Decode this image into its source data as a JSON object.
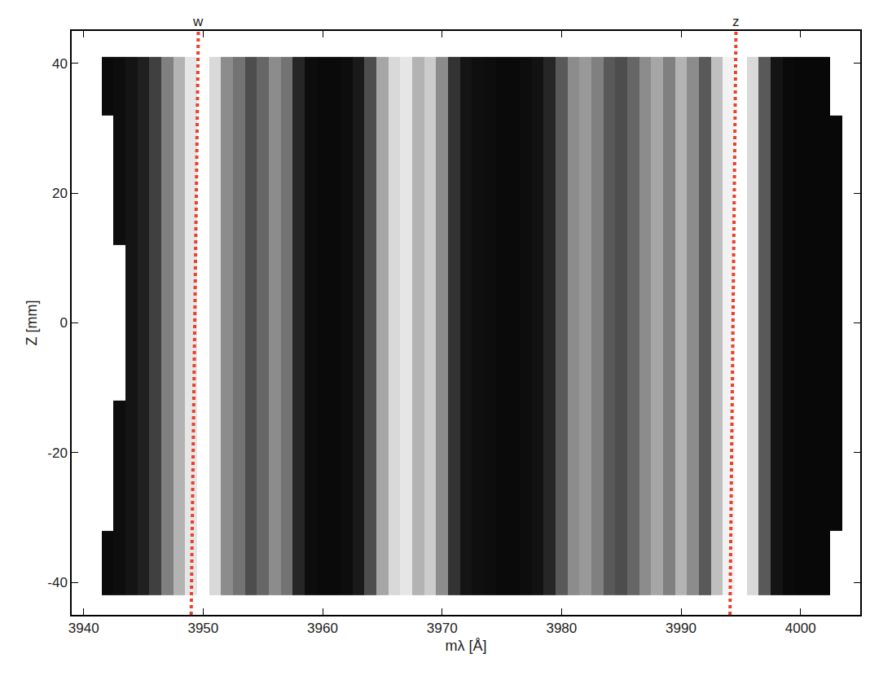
{
  "chart_data": {
    "type": "heatmap",
    "x_label": "mλ [Å]",
    "y_label": "Z [mm]",
    "x": [
      3941,
      3942,
      3943,
      3944,
      3945,
      3946,
      3947,
      3948,
      3949,
      3950,
      3951,
      3952,
      3953,
      3954,
      3955,
      3956,
      3957,
      3958,
      3959,
      3960,
      3961,
      3962,
      3963,
      3964,
      3965,
      3966,
      3967,
      3968,
      3969,
      3970,
      3971,
      3972,
      3973,
      3974,
      3975,
      3976,
      3977,
      3978,
      3979,
      3980,
      3981,
      3982,
      3983,
      3984,
      3985,
      3986,
      3987,
      3988,
      3989,
      3990,
      3991,
      3992,
      3993,
      3994,
      3995,
      3996,
      3997,
      3998,
      3999,
      4000,
      4001,
      4002,
      4003,
      4004
    ],
    "y_edges": [
      -42,
      -32,
      -22,
      -12,
      -4,
      4,
      12,
      22,
      32,
      41
    ],
    "cells": [
      [
        null,
        0.04,
        0.05,
        0.08,
        0.12,
        0.25,
        0.5,
        0.7,
        0.9,
        1.0,
        0.85,
        0.55,
        0.45,
        0.3,
        0.4,
        0.55,
        0.45,
        0.15,
        0.05,
        0.04,
        0.04,
        0.05,
        0.1,
        0.3,
        0.65,
        0.85,
        0.9,
        0.7,
        0.8,
        0.55,
        0.2,
        0.08,
        0.06,
        0.05,
        0.04,
        0.04,
        0.05,
        0.07,
        0.15,
        0.35,
        0.55,
        0.6,
        0.5,
        0.35,
        0.3,
        0.4,
        0.55,
        0.65,
        0.5,
        0.7,
        0.55,
        0.35,
        0.75,
        0.95,
        1.0,
        0.85,
        0.35,
        0.08,
        0.04,
        0.03,
        0.03,
        0.03,
        null,
        null
      ],
      [
        null,
        null,
        0.05,
        0.08,
        0.12,
        0.25,
        0.5,
        0.7,
        0.9,
        1.0,
        0.85,
        0.55,
        0.45,
        0.3,
        0.4,
        0.55,
        0.45,
        0.15,
        0.05,
        0.04,
        0.04,
        0.05,
        0.1,
        0.3,
        0.65,
        0.85,
        0.9,
        0.7,
        0.8,
        0.55,
        0.2,
        0.08,
        0.06,
        0.05,
        0.04,
        0.04,
        0.05,
        0.07,
        0.15,
        0.35,
        0.55,
        0.6,
        0.5,
        0.35,
        0.3,
        0.4,
        0.55,
        0.65,
        0.5,
        0.7,
        0.55,
        0.35,
        0.75,
        0.95,
        1.0,
        0.85,
        0.35,
        0.08,
        0.04,
        0.03,
        0.03,
        0.03,
        0.03,
        null
      ],
      [
        null,
        null,
        0.05,
        0.08,
        0.12,
        0.25,
        0.5,
        0.7,
        0.9,
        1.0,
        0.85,
        0.55,
        0.45,
        0.3,
        0.4,
        0.55,
        0.45,
        0.15,
        0.05,
        0.04,
        0.04,
        0.05,
        0.1,
        0.3,
        0.65,
        0.85,
        0.9,
        0.7,
        0.8,
        0.55,
        0.2,
        0.08,
        0.06,
        0.05,
        0.04,
        0.04,
        0.05,
        0.07,
        0.15,
        0.35,
        0.55,
        0.6,
        0.5,
        0.35,
        0.3,
        0.4,
        0.55,
        0.65,
        0.5,
        0.7,
        0.55,
        0.35,
        0.75,
        0.95,
        1.0,
        0.85,
        0.35,
        0.08,
        0.04,
        0.03,
        0.03,
        0.03,
        0.03,
        null
      ],
      [
        null,
        null,
        null,
        0.08,
        0.12,
        0.25,
        0.5,
        0.7,
        0.9,
        1.0,
        0.85,
        0.55,
        0.45,
        0.3,
        0.4,
        0.55,
        0.45,
        0.15,
        0.05,
        0.04,
        0.04,
        0.05,
        0.1,
        0.3,
        0.65,
        0.85,
        0.9,
        0.7,
        0.8,
        0.55,
        0.2,
        0.08,
        0.06,
        0.05,
        0.04,
        0.04,
        0.05,
        0.07,
        0.15,
        0.35,
        0.55,
        0.6,
        0.5,
        0.35,
        0.3,
        0.4,
        0.55,
        0.65,
        0.5,
        0.7,
        0.55,
        0.35,
        0.75,
        0.95,
        1.0,
        0.85,
        0.35,
        0.08,
        0.04,
        0.03,
        0.03,
        0.03,
        0.03,
        null
      ],
      [
        null,
        null,
        null,
        0.08,
        0.12,
        0.25,
        0.5,
        0.7,
        0.9,
        1.0,
        0.85,
        0.55,
        0.45,
        0.3,
        0.4,
        0.55,
        0.45,
        0.15,
        0.05,
        0.04,
        0.04,
        0.05,
        0.1,
        0.3,
        0.65,
        0.85,
        0.9,
        0.7,
        0.8,
        0.55,
        0.2,
        0.08,
        0.06,
        0.05,
        0.04,
        0.04,
        0.05,
        0.07,
        0.15,
        0.35,
        0.55,
        0.6,
        0.5,
        0.35,
        0.3,
        0.4,
        0.55,
        0.65,
        0.5,
        0.7,
        0.55,
        0.35,
        0.75,
        0.95,
        1.0,
        0.85,
        0.35,
        0.08,
        0.04,
        0.03,
        0.03,
        0.03,
        0.03,
        null
      ],
      [
        null,
        null,
        null,
        0.08,
        0.12,
        0.25,
        0.5,
        0.7,
        0.9,
        1.0,
        0.85,
        0.55,
        0.45,
        0.3,
        0.4,
        0.55,
        0.45,
        0.15,
        0.05,
        0.04,
        0.04,
        0.05,
        0.1,
        0.3,
        0.65,
        0.85,
        0.9,
        0.7,
        0.8,
        0.55,
        0.2,
        0.08,
        0.06,
        0.05,
        0.04,
        0.04,
        0.05,
        0.07,
        0.15,
        0.35,
        0.55,
        0.6,
        0.5,
        0.35,
        0.3,
        0.4,
        0.55,
        0.65,
        0.5,
        0.7,
        0.55,
        0.35,
        0.75,
        0.95,
        1.0,
        0.85,
        0.35,
        0.08,
        0.04,
        0.03,
        0.03,
        0.03,
        0.03,
        null
      ],
      [
        null,
        null,
        0.05,
        0.08,
        0.12,
        0.25,
        0.5,
        0.7,
        0.9,
        1.0,
        0.85,
        0.55,
        0.45,
        0.3,
        0.4,
        0.55,
        0.45,
        0.15,
        0.05,
        0.04,
        0.04,
        0.05,
        0.1,
        0.3,
        0.65,
        0.85,
        0.9,
        0.7,
        0.8,
        0.55,
        0.2,
        0.08,
        0.06,
        0.05,
        0.04,
        0.04,
        0.05,
        0.07,
        0.15,
        0.35,
        0.55,
        0.6,
        0.5,
        0.35,
        0.3,
        0.4,
        0.55,
        0.65,
        0.5,
        0.7,
        0.55,
        0.35,
        0.75,
        0.95,
        1.0,
        0.85,
        0.35,
        0.08,
        0.04,
        0.03,
        0.03,
        0.03,
        0.03,
        null
      ],
      [
        null,
        null,
        0.05,
        0.08,
        0.12,
        0.25,
        0.5,
        0.7,
        0.9,
        1.0,
        0.85,
        0.55,
        0.45,
        0.3,
        0.4,
        0.55,
        0.45,
        0.15,
        0.05,
        0.04,
        0.04,
        0.05,
        0.1,
        0.3,
        0.65,
        0.85,
        0.9,
        0.7,
        0.8,
        0.55,
        0.2,
        0.08,
        0.06,
        0.05,
        0.04,
        0.04,
        0.05,
        0.07,
        0.15,
        0.35,
        0.55,
        0.6,
        0.5,
        0.35,
        0.3,
        0.4,
        0.55,
        0.65,
        0.5,
        0.7,
        0.55,
        0.35,
        0.75,
        0.95,
        1.0,
        0.85,
        0.35,
        0.08,
        0.04,
        0.03,
        0.03,
        0.03,
        0.03,
        null
      ],
      [
        null,
        0.04,
        0.05,
        0.08,
        0.12,
        0.25,
        0.5,
        0.7,
        0.9,
        1.0,
        0.85,
        0.55,
        0.45,
        0.3,
        0.4,
        0.55,
        0.45,
        0.15,
        0.05,
        0.04,
        0.04,
        0.05,
        0.1,
        0.3,
        0.65,
        0.85,
        0.9,
        0.7,
        0.8,
        0.55,
        0.2,
        0.08,
        0.06,
        0.05,
        0.04,
        0.04,
        0.05,
        0.07,
        0.15,
        0.35,
        0.55,
        0.6,
        0.5,
        0.35,
        0.3,
        0.4,
        0.55,
        0.65,
        0.5,
        0.7,
        0.55,
        0.35,
        0.75,
        0.95,
        1.0,
        0.85,
        0.35,
        0.08,
        0.04,
        0.03,
        0.03,
        0.03,
        null,
        null
      ]
    ],
    "zlim": [
      0,
      1
    ],
    "xlim": [
      3939,
      4005
    ],
    "ylim": [
      -45,
      45
    ],
    "xticks": [
      3940,
      3950,
      3960,
      3970,
      3980,
      3990,
      4000
    ],
    "yticks": [
      -40,
      -20,
      0,
      20,
      40
    ],
    "grid": false,
    "annotations": [
      {
        "text": "w",
        "x_top": 3949.6,
        "x_bottom": 3949.0,
        "line_style": "dotted"
      },
      {
        "text": "z",
        "x_top": 3994.6,
        "x_bottom": 3994.1,
        "line_style": "dotted"
      }
    ]
  }
}
